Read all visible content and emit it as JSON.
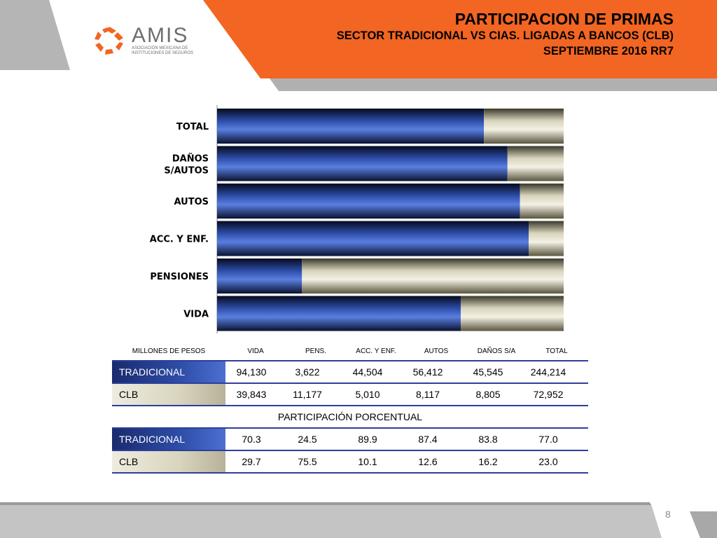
{
  "header": {
    "title": "PARTICIPACION DE PRIMAS",
    "subtitle": "SECTOR TRADICIONAL VS CIAS. LIGADAS A BANCOS (CLB)",
    "period": "SEPTIEMBRE 2016 RR7"
  },
  "logo": {
    "name": "AMIS",
    "subtitle": "ASOCIACIÓN MEXICANA DE INSTITUCIONES DE SEGUROS"
  },
  "colors": {
    "accent": "#f26522",
    "gray": "#b0b0b0",
    "tradicional": "#2e4da8",
    "clb": "#d8d4bd",
    "rule": "#2d3f9a"
  },
  "chart_data": {
    "type": "bar",
    "orientation": "horizontal",
    "stacked": "percent",
    "categories": [
      [
        "TOTAL"
      ],
      [
        "DAÑOS",
        "S/AUTOS"
      ],
      [
        "AUTOS"
      ],
      [
        "ACC. Y ENF."
      ],
      [
        "PENSIONES"
      ],
      [
        "VIDA"
      ]
    ],
    "series": [
      {
        "name": "TRADICIONAL",
        "values": [
          77.0,
          83.8,
          87.4,
          89.9,
          24.5,
          70.3
        ]
      },
      {
        "name": "CLB",
        "values": [
          23.0,
          16.2,
          12.6,
          10.1,
          75.5,
          29.7
        ]
      }
    ],
    "xlim": [
      0,
      100
    ],
    "grid": false,
    "legend": "none"
  },
  "table": {
    "header": [
      "MILLONES DE PESOS",
      "VIDA",
      "PENS.",
      "ACC. Y ENF.",
      "AUTOS",
      "DAÑOS S/A",
      "TOTAL"
    ],
    "amounts": [
      {
        "label": "TRADICIONAL",
        "values": [
          "94,130",
          "3,622",
          "44,504",
          "56,412",
          "45,545",
          "244,214"
        ]
      },
      {
        "label": "CLB",
        "values": [
          "39,843",
          "11,177",
          "5,010",
          "8,117",
          "8,805",
          "72,952"
        ]
      }
    ],
    "section_title": "PARTICIPACIÓN PORCENTUAL",
    "percents": [
      {
        "label": "TRADICIONAL",
        "values": [
          "70.3",
          "24.5",
          "89.9",
          "87.4",
          "83.8",
          "77.0"
        ]
      },
      {
        "label": "CLB",
        "values": [
          "29.7",
          "75.5",
          "10.1",
          "12.6",
          "16.2",
          "23.0"
        ]
      }
    ]
  },
  "footer": {
    "page_number": "8"
  }
}
